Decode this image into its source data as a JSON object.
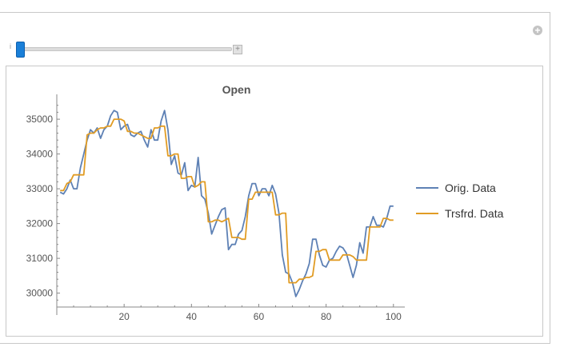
{
  "slider": {
    "label": "i",
    "plus": "+",
    "value_fraction": 0.0
  },
  "panel": {
    "plus_icon": "+"
  },
  "chart_data": {
    "type": "line",
    "title": "Open",
    "xlabel": "",
    "ylabel": "",
    "xlim": [
      0,
      101
    ],
    "ylim": [
      29600,
      35600
    ],
    "xticks": [
      20,
      40,
      60,
      80,
      100
    ],
    "yticks": [
      30000,
      31000,
      32000,
      33000,
      34000,
      35000
    ],
    "legend_position": "right",
    "series": [
      {
        "name": "Orig. Data",
        "color": "#5e81b5",
        "x": [
          1,
          2,
          3,
          4,
          5,
          6,
          7,
          8,
          9,
          10,
          11,
          12,
          13,
          14,
          15,
          16,
          17,
          18,
          19,
          20,
          21,
          22,
          23,
          24,
          25,
          26,
          27,
          28,
          29,
          30,
          31,
          32,
          33,
          34,
          35,
          36,
          37,
          38,
          39,
          40,
          41,
          42,
          43,
          44,
          45,
          46,
          47,
          48,
          49,
          50,
          51,
          52,
          53,
          54,
          55,
          56,
          57,
          58,
          59,
          60,
          61,
          62,
          63,
          64,
          65,
          66,
          67,
          68,
          69,
          70,
          71,
          72,
          73,
          74,
          75,
          76,
          77,
          78,
          79,
          80,
          81,
          82,
          83,
          84,
          85,
          86,
          87,
          88,
          89,
          90,
          91,
          92,
          93,
          94,
          95,
          96,
          97,
          98,
          99,
          100
        ],
        "y": [
          32900,
          32850,
          33000,
          33250,
          33000,
          33000,
          33600,
          34000,
          34400,
          34700,
          34600,
          34750,
          34450,
          34700,
          34800,
          35100,
          35250,
          35200,
          34700,
          34800,
          34850,
          34550,
          34500,
          34600,
          34650,
          34400,
          34200,
          34700,
          34400,
          34400,
          34950,
          35250,
          34700,
          33700,
          33950,
          33450,
          33400,
          33750,
          32950,
          33100,
          33050,
          33900,
          32800,
          32700,
          32300,
          31700,
          31950,
          32200,
          32400,
          32450,
          31250,
          31400,
          31400,
          31700,
          31800,
          32200,
          32800,
          33150,
          33150,
          32800,
          33000,
          33000,
          32800,
          33100,
          32850,
          32300,
          31100,
          30600,
          30550,
          30300,
          29900,
          30100,
          30350,
          30550,
          30850,
          31550,
          31550,
          31100,
          30800,
          30750,
          30950,
          31000,
          31200,
          31350,
          31300,
          31150,
          30800,
          30450,
          30800,
          31450,
          31150,
          31900,
          31900,
          32200,
          31950,
          31950,
          31900,
          32150,
          32500,
          32500
        ]
      },
      {
        "name": "Trsfrd. Data",
        "color": "#e19c24",
        "x": [
          1,
          2,
          3,
          4,
          5,
          6,
          7,
          8,
          9,
          10,
          11,
          12,
          13,
          14,
          15,
          16,
          17,
          18,
          19,
          20,
          21,
          22,
          23,
          24,
          25,
          26,
          27,
          28,
          29,
          30,
          31,
          32,
          33,
          34,
          35,
          36,
          37,
          38,
          39,
          40,
          41,
          42,
          43,
          44,
          45,
          46,
          47,
          48,
          49,
          50,
          51,
          52,
          53,
          54,
          55,
          56,
          57,
          58,
          59,
          60,
          61,
          62,
          63,
          64,
          65,
          66,
          67,
          68,
          69,
          70,
          71,
          72,
          73,
          74,
          75,
          76,
          77,
          78,
          79,
          80,
          81,
          82,
          83,
          84,
          85,
          86,
          87,
          88,
          89,
          90,
          91,
          92,
          93,
          94,
          95,
          96,
          97,
          98,
          99,
          100
        ],
        "y": [
          32950,
          32950,
          33150,
          33200,
          33400,
          33400,
          33400,
          33400,
          34550,
          34600,
          34600,
          34700,
          34750,
          34750,
          34800,
          34800,
          35000,
          35000,
          35000,
          34950,
          34650,
          34650,
          34600,
          34600,
          34550,
          34500,
          34450,
          34450,
          34750,
          34750,
          34800,
          34800,
          33950,
          33950,
          34000,
          34000,
          33300,
          33300,
          33350,
          33350,
          33050,
          33100,
          33200,
          33200,
          32050,
          32050,
          32100,
          32100,
          32050,
          32100,
          32150,
          31600,
          31600,
          31600,
          31550,
          31550,
          32700,
          32700,
          32900,
          32900,
          32900,
          32900,
          32900,
          32900,
          32250,
          32250,
          32300,
          32300,
          30300,
          30300,
          30300,
          30400,
          30400,
          30450,
          30450,
          30500,
          31200,
          31200,
          31250,
          31250,
          30950,
          30950,
          30950,
          30950,
          31100,
          31100,
          31100,
          31050,
          30950,
          30950,
          30950,
          30950,
          31900,
          31900,
          31900,
          31900,
          32150,
          32150,
          32100,
          32100
        ]
      }
    ]
  }
}
